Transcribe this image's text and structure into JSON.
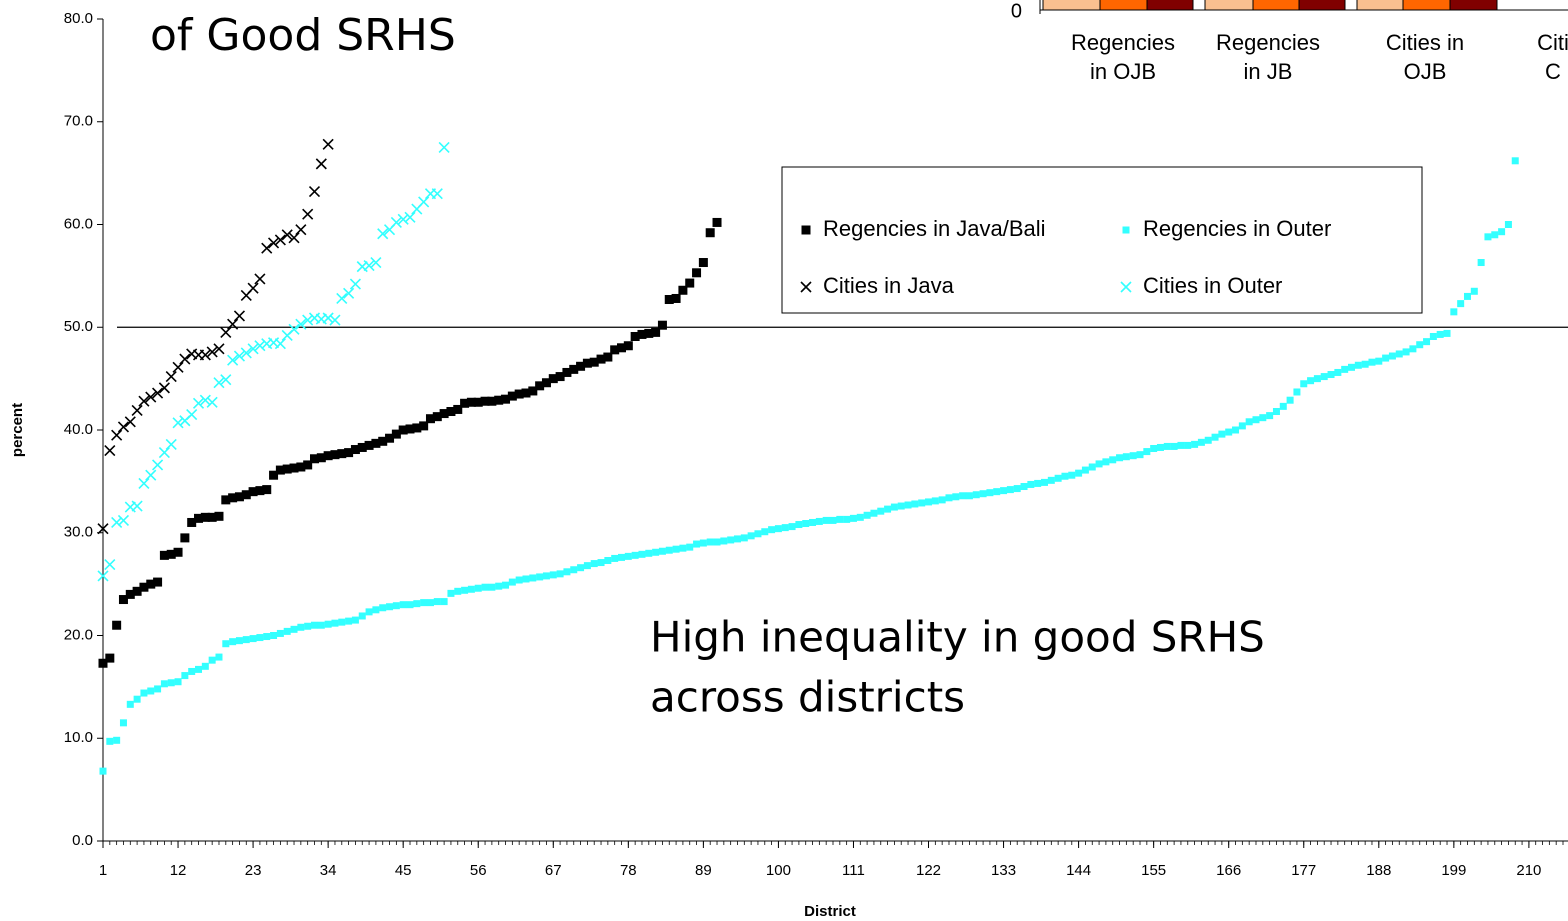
{
  "chart_data": [
    {
      "type": "scatter",
      "title": "of Good SRHS",
      "annotation": [
        "High inequality in good SRHS",
        "across districts"
      ],
      "x_label": "District",
      "y_label": "percent",
      "xlim": [
        1,
        215
      ],
      "xticks": [
        1,
        12,
        23,
        34,
        45,
        56,
        67,
        78,
        89,
        100,
        111,
        122,
        133,
        144,
        155,
        166,
        177,
        188,
        199,
        210
      ],
      "ylim": [
        0,
        80
      ],
      "yticks": [
        {
          "value": 0,
          "label": "0.0"
        },
        {
          "value": 10,
          "label": "10.0"
        },
        {
          "value": 20,
          "label": "20.0"
        },
        {
          "value": 30,
          "label": "30.0"
        },
        {
          "value": 40,
          "label": "40.0"
        },
        {
          "value": 50,
          "label": "50.0"
        },
        {
          "value": 60,
          "label": "60.0"
        },
        {
          "value": 70,
          "label": "70.0"
        },
        {
          "value": 80,
          "label": "80.0"
        }
      ],
      "reference_line": 50,
      "legend": "upper right",
      "series": [
        {
          "name": "Regencies in Java/Bali",
          "color": "#000000",
          "marker": "square",
          "values": [
            17.3,
            17.8,
            21,
            23.5,
            24,
            24.3,
            24.7,
            25,
            25.2,
            27.8,
            27.9,
            28.1,
            29.5,
            31,
            31.4,
            31.5,
            31.5,
            31.6,
            33.2,
            33.4,
            33.5,
            33.7,
            34,
            34.1,
            34.2,
            35.6,
            36.1,
            36.2,
            36.3,
            36.4,
            36.6,
            37.2,
            37.3,
            37.5,
            37.6,
            37.7,
            37.8,
            38.1,
            38.3,
            38.5,
            38.7,
            38.9,
            39.2,
            39.6,
            40.0,
            40.1,
            40.2,
            40.4,
            41.1,
            41.3,
            41.6,
            41.8,
            42.0,
            42.6,
            42.7,
            42.7,
            42.8,
            42.8,
            42.9,
            43.0,
            43.3,
            43.5,
            43.6,
            43.8,
            44.3,
            44.6,
            45.0,
            45.2,
            45.6,
            45.9,
            46.2,
            46.5,
            46.6,
            46.9,
            47.1,
            47.8,
            48.0,
            48.2,
            49.1,
            49.3,
            49.4,
            49.5,
            50.2,
            52.7,
            52.8,
            53.6,
            54.3,
            55.3,
            56.3,
            59.2,
            60.2
          ]
        },
        {
          "name": "Regencies in Outer",
          "color": "#33ffff",
          "marker": "square",
          "values": [
            6.8,
            9.7,
            9.8,
            11.5,
            13.3,
            13.8,
            14.4,
            14.6,
            14.8,
            15.3,
            15.4,
            15.5,
            16.1,
            16.5,
            16.7,
            17.0,
            17.6,
            17.9,
            19.2,
            19.4,
            19.5,
            19.6,
            19.7,
            19.8,
            19.9,
            20.0,
            20.2,
            20.4,
            20.6,
            20.8,
            20.9,
            21.0,
            21.0,
            21.1,
            21.2,
            21.3,
            21.4,
            21.5,
            21.9,
            22.3,
            22.5,
            22.7,
            22.8,
            22.9,
            23.0,
            23.0,
            23.1,
            23.2,
            23.2,
            23.3,
            23.3,
            24.1,
            24.3,
            24.4,
            24.5,
            24.6,
            24.7,
            24.7,
            24.8,
            24.9,
            25.2,
            25.4,
            25.5,
            25.6,
            25.7,
            25.8,
            25.9,
            26.0,
            26.2,
            26.4,
            26.6,
            26.8,
            27.0,
            27.1,
            27.3,
            27.5,
            27.6,
            27.7,
            27.8,
            27.9,
            28.0,
            28.1,
            28.2,
            28.3,
            28.4,
            28.5,
            28.6,
            28.9,
            29.0,
            29.1,
            29.1,
            29.2,
            29.3,
            29.4,
            29.5,
            29.7,
            29.9,
            30.1,
            30.3,
            30.4,
            30.5,
            30.6,
            30.8,
            30.9,
            31.0,
            31.1,
            31.2,
            31.2,
            31.3,
            31.3,
            31.4,
            31.5,
            31.7,
            31.9,
            32.1,
            32.3,
            32.5,
            32.6,
            32.7,
            32.8,
            32.9,
            33.0,
            33.1,
            33.2,
            33.4,
            33.5,
            33.6,
            33.6,
            33.7,
            33.8,
            33.9,
            34.0,
            34.1,
            34.2,
            34.3,
            34.5,
            34.7,
            34.8,
            34.9,
            35.1,
            35.3,
            35.5,
            35.6,
            35.8,
            36.1,
            36.4,
            36.7,
            36.9,
            37.1,
            37.3,
            37.4,
            37.5,
            37.6,
            37.9,
            38.2,
            38.3,
            38.4,
            38.4,
            38.5,
            38.5,
            38.6,
            38.8,
            39.0,
            39.3,
            39.6,
            39.8,
            40.0,
            40.4,
            40.8,
            41.0,
            41.2,
            41.4,
            41.8,
            42.3,
            42.9,
            43.7,
            44.5,
            44.8,
            45.0,
            45.2,
            45.4,
            45.6,
            45.9,
            46.1,
            46.3,
            46.4,
            46.6,
            46.7,
            47.0,
            47.2,
            47.4,
            47.6,
            47.9,
            48.3,
            48.6,
            49.1,
            49.3,
            49.4,
            51.5,
            52.3,
            53.0,
            53.5,
            56.3,
            58.8,
            59.0,
            59.3,
            60.0,
            66.2
          ]
        },
        {
          "name": "Cities in Java",
          "color": "#000000",
          "marker": "x",
          "values": [
            30.4,
            38,
            39.5,
            40.3,
            40.8,
            41.9,
            42.8,
            43.2,
            43.6,
            44.1,
            45.2,
            46.1,
            46.9,
            47.4,
            47.3,
            47.3,
            47.6,
            47.9,
            49.5,
            50.3,
            51.1,
            53.1,
            53.8,
            54.7,
            57.7,
            58.2,
            58.5,
            59.0,
            58.7,
            59.5,
            61.0,
            63.2,
            65.9,
            67.8
          ]
        },
        {
          "name": "Cities in Outer",
          "color": "#33ffff",
          "marker": "x",
          "values": [
            25.8,
            26.9,
            31,
            31.2,
            32.5,
            32.6,
            34.8,
            35.6,
            36.6,
            37.8,
            38.6,
            40.7,
            40.9,
            41.5,
            42.6,
            42.9,
            42.7,
            44.6,
            44.9,
            46.8,
            47.2,
            47.5,
            47.9,
            48.2,
            48.4,
            48.5,
            48.4,
            49.2,
            49.8,
            50.3,
            50.7,
            50.9,
            50.8,
            50.9,
            50.7,
            52.8,
            53.3,
            54.2,
            55.9,
            56.0,
            56.3,
            59.1,
            59.5,
            60.2,
            60.5,
            60.7,
            61.5,
            62.2,
            63.0,
            63.0,
            67.5
          ]
        }
      ]
    },
    {
      "type": "bar",
      "ytick": "0",
      "categories": [
        [
          "Regencies",
          "in OJB"
        ],
        [
          "Regencies",
          "in JB"
        ],
        [
          "Cities in",
          "OJB"
        ],
        [
          "Citi",
          "C"
        ]
      ]
    }
  ]
}
